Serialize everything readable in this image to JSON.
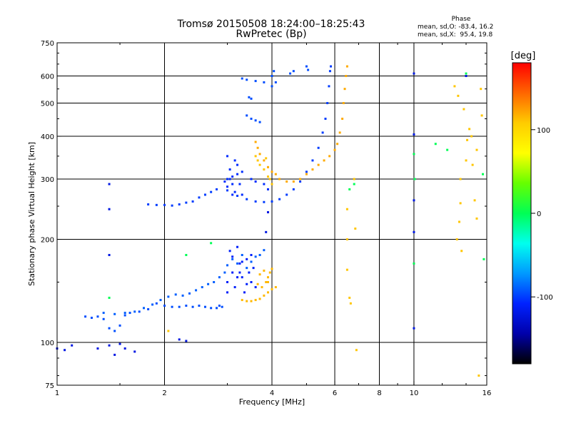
{
  "chart_data": {
    "type": "scatter",
    "title": "Tromsø 20150508 18:24:00–18:25:43",
    "subtitle": "RwPretec (Bp)",
    "xlabel": "Frequency [MHz]",
    "ylabel": "Stationary phase Virtual Height [km]",
    "x_scale": "log",
    "y_scale": "log",
    "xlim": [
      1,
      16
    ],
    "ylim": [
      75,
      750
    ],
    "x_ticks": [
      1,
      2,
      4,
      6,
      8,
      10,
      16
    ],
    "x_tick_labels": [
      "1",
      "2",
      "4",
      "6",
      "8",
      "10",
      "16"
    ],
    "y_ticks": [
      75,
      100,
      200,
      300,
      400,
      500,
      600,
      750
    ],
    "y_tick_labels": [
      "75",
      "100",
      "200",
      "300",
      "400",
      "500",
      "600",
      "750"
    ],
    "grid": true,
    "phase_stats": {
      "heading": "Phase",
      "o_line": "mean, sd,O: -83.4, 16.2",
      "x_line": "mean, sd,X:  95.4, 19.8"
    },
    "colorbar": {
      "label": "[deg]",
      "ticks": [
        100,
        0,
        -100
      ],
      "tick_labels": [
        "100",
        "0",
        "-100"
      ],
      "range": [
        -180,
        180
      ],
      "colors": [
        "#ff0000",
        "#ff6600",
        "#ffcc00",
        "#ffff00",
        "#66ff00",
        "#00ff55",
        "#00ffee",
        "#0099ff",
        "#0022ff",
        "#0000aa",
        "#000000"
      ]
    },
    "series": [
      {
        "kind": "o-low-e",
        "phase": -95,
        "points": [
          [
            1.2,
            119
          ],
          [
            1.25,
            118
          ],
          [
            1.3,
            119
          ],
          [
            1.35,
            117
          ],
          [
            1.4,
            110
          ],
          [
            1.45,
            108
          ],
          [
            1.5,
            112
          ],
          [
            1.55,
            120
          ],
          [
            1.6,
            122
          ],
          [
            1.7,
            123
          ],
          [
            1.8,
            125
          ],
          [
            1.9,
            130
          ],
          [
            2.0,
            128
          ],
          [
            2.1,
            127
          ],
          [
            2.2,
            127
          ],
          [
            2.3,
            128
          ],
          [
            2.4,
            127
          ],
          [
            2.5,
            128
          ],
          [
            2.6,
            127
          ],
          [
            2.7,
            126
          ],
          [
            2.8,
            126
          ],
          [
            2.85,
            128
          ],
          [
            2.9,
            127
          ]
        ]
      },
      {
        "kind": "o-low-e-2",
        "phase": -90,
        "points": [
          [
            1.35,
            122
          ],
          [
            1.45,
            121
          ],
          [
            1.55,
            122
          ],
          [
            1.65,
            123
          ],
          [
            1.75,
            126
          ],
          [
            1.85,
            129
          ],
          [
            1.95,
            133
          ],
          [
            2.05,
            136
          ],
          [
            2.15,
            138
          ],
          [
            2.25,
            137
          ],
          [
            2.35,
            139
          ],
          [
            2.45,
            142
          ],
          [
            2.55,
            145
          ],
          [
            2.65,
            148
          ],
          [
            2.75,
            150
          ],
          [
            2.85,
            155
          ],
          [
            2.95,
            160
          ],
          [
            3.0,
            168
          ],
          [
            3.1,
            175
          ],
          [
            3.2,
            170
          ],
          [
            3.3,
            180
          ],
          [
            3.4,
            165
          ],
          [
            3.5,
            172
          ],
          [
            3.6,
            178
          ],
          [
            3.7,
            180
          ],
          [
            3.8,
            186
          ]
        ]
      },
      {
        "kind": "o-cluster-e",
        "phase": -110,
        "points": [
          [
            3.0,
            150
          ],
          [
            3.05,
            185
          ],
          [
            3.1,
            160
          ],
          [
            3.15,
            145
          ],
          [
            3.2,
            190
          ],
          [
            3.25,
            170
          ],
          [
            3.3,
            155
          ],
          [
            3.35,
            140
          ],
          [
            3.4,
            175
          ],
          [
            3.45,
            160
          ],
          [
            3.5,
            150
          ],
          [
            3.55,
            165
          ],
          [
            3.6,
            145
          ],
          [
            3.2,
            155
          ],
          [
            3.3,
            172
          ],
          [
            3.4,
            148
          ],
          [
            3.1,
            178
          ],
          [
            3.0,
            140
          ],
          [
            3.5,
            180
          ],
          [
            3.25,
            160
          ]
        ]
      },
      {
        "kind": "x-low-e",
        "phase": 115,
        "points": [
          [
            3.3,
            133
          ],
          [
            3.4,
            132
          ],
          [
            3.5,
            132
          ],
          [
            3.6,
            133
          ],
          [
            3.7,
            134
          ],
          [
            3.8,
            137
          ],
          [
            3.9,
            140
          ],
          [
            4.0,
            143
          ],
          [
            3.75,
            145
          ],
          [
            3.85,
            150
          ],
          [
            3.9,
            155
          ],
          [
            3.95,
            160
          ],
          [
            4.0,
            164
          ],
          [
            3.8,
            162
          ],
          [
            3.7,
            158
          ],
          [
            3.65,
            148
          ],
          [
            3.9,
            150
          ],
          [
            4.1,
            145
          ]
        ]
      },
      {
        "kind": "o-f-trace",
        "phase": -100,
        "points": [
          [
            1.8,
            253
          ],
          [
            1.9,
            252
          ],
          [
            2.0,
            252
          ],
          [
            2.1,
            251
          ],
          [
            2.2,
            253
          ],
          [
            2.3,
            256
          ],
          [
            2.4,
            258
          ],
          [
            2.5,
            265
          ],
          [
            2.6,
            270
          ],
          [
            2.7,
            275
          ],
          [
            2.8,
            280
          ],
          [
            3.0,
            278
          ],
          [
            3.2,
            268
          ],
          [
            3.4,
            262
          ],
          [
            3.6,
            258
          ],
          [
            3.8,
            257
          ],
          [
            4.0,
            258
          ],
          [
            4.2,
            262
          ],
          [
            4.4,
            270
          ],
          [
            4.6,
            280
          ],
          [
            4.8,
            295
          ],
          [
            5.0,
            315
          ],
          [
            5.2,
            340
          ],
          [
            5.4,
            370
          ],
          [
            5.55,
            410
          ],
          [
            5.65,
            450
          ],
          [
            5.72,
            500
          ],
          [
            5.78,
            560
          ],
          [
            5.82,
            620
          ],
          [
            5.85,
            640
          ]
        ]
      },
      {
        "kind": "o-f-spread",
        "phase": -105,
        "points": [
          [
            3.0,
            300
          ],
          [
            3.05,
            320
          ],
          [
            3.1,
            290
          ],
          [
            3.15,
            340
          ],
          [
            3.2,
            310
          ],
          [
            3.0,
            285
          ],
          [
            3.1,
            270
          ],
          [
            3.05,
            300
          ],
          [
            3.2,
            330
          ],
          [
            3.25,
            290
          ],
          [
            3.3,
            315
          ],
          [
            2.95,
            295
          ],
          [
            3.0,
            350
          ],
          [
            3.1,
            305
          ],
          [
            3.15,
            275
          ],
          [
            3.3,
            270
          ],
          [
            3.5,
            300
          ],
          [
            3.6,
            295
          ],
          [
            3.8,
            290
          ],
          [
            3.9,
            280
          ]
        ]
      },
      {
        "kind": "o-high",
        "phase": -95,
        "points": [
          [
            3.3,
            590
          ],
          [
            3.4,
            585
          ],
          [
            3.6,
            580
          ],
          [
            3.8,
            575
          ],
          [
            4.0,
            560
          ],
          [
            4.0,
            600
          ],
          [
            4.05,
            620
          ],
          [
            4.1,
            575
          ],
          [
            4.5,
            610
          ],
          [
            4.6,
            620
          ],
          [
            5.0,
            640
          ],
          [
            5.05,
            625
          ],
          [
            3.4,
            460
          ],
          [
            3.5,
            450
          ],
          [
            3.6,
            445
          ],
          [
            3.7,
            440
          ],
          [
            3.45,
            520
          ],
          [
            3.5,
            515
          ]
        ]
      },
      {
        "kind": "x-f-trace",
        "phase": 120,
        "points": [
          [
            3.6,
            385
          ],
          [
            3.65,
            370
          ],
          [
            3.7,
            355
          ],
          [
            3.8,
            340
          ],
          [
            3.9,
            325
          ],
          [
            4.0,
            315
          ],
          [
            4.1,
            310
          ],
          [
            4.2,
            300
          ],
          [
            4.4,
            295
          ],
          [
            4.6,
            295
          ],
          [
            4.8,
            300
          ],
          [
            5.0,
            310
          ],
          [
            5.2,
            320
          ],
          [
            5.4,
            330
          ],
          [
            5.6,
            340
          ],
          [
            5.8,
            350
          ],
          [
            6.0,
            365
          ],
          [
            6.1,
            380
          ],
          [
            6.2,
            410
          ],
          [
            6.3,
            450
          ],
          [
            6.35,
            500
          ],
          [
            6.4,
            550
          ],
          [
            6.45,
            600
          ],
          [
            6.5,
            640
          ]
        ]
      },
      {
        "kind": "x-f-spread",
        "phase": 110,
        "points": [
          [
            3.6,
            350
          ],
          [
            3.65,
            340
          ],
          [
            3.7,
            330
          ],
          [
            3.8,
            320
          ],
          [
            3.85,
            345
          ],
          [
            3.9,
            305
          ],
          [
            3.95,
            300
          ],
          [
            4.0,
            290
          ]
        ]
      },
      {
        "kind": "noise",
        "phase": -120,
        "points": [
          [
            1.0,
            96
          ],
          [
            1.05,
            95
          ],
          [
            1.1,
            98
          ],
          [
            1.3,
            96
          ],
          [
            1.4,
            98
          ],
          [
            1.45,
            92
          ],
          [
            1.5,
            99
          ],
          [
            1.55,
            96
          ],
          [
            1.65,
            94
          ],
          [
            1.4,
            290
          ],
          [
            1.4,
            245
          ],
          [
            1.4,
            180
          ],
          [
            2.2,
            102
          ],
          [
            2.3,
            101
          ],
          [
            3.85,
            210
          ],
          [
            3.9,
            240
          ],
          [
            10.0,
            110
          ],
          [
            10.0,
            210
          ],
          [
            10.0,
            260
          ],
          [
            10.0,
            405
          ],
          [
            10.0,
            610
          ],
          [
            14.0,
            600
          ]
        ]
      },
      {
        "kind": "noise-warm",
        "phase": 110,
        "points": [
          [
            2.05,
            108
          ],
          [
            6.5,
            245
          ],
          [
            6.5,
            200
          ],
          [
            6.5,
            163
          ],
          [
            6.6,
            135
          ],
          [
            6.65,
            130
          ],
          [
            6.8,
            300
          ],
          [
            6.85,
            215
          ],
          [
            6.9,
            95
          ],
          [
            13.2,
            200
          ],
          [
            13.4,
            225
          ],
          [
            13.5,
            255
          ],
          [
            13.6,
            185
          ],
          [
            13.8,
            480
          ],
          [
            14.0,
            340
          ],
          [
            14.1,
            390
          ],
          [
            14.3,
            420
          ],
          [
            14.5,
            400
          ],
          [
            14.6,
            330
          ],
          [
            14.8,
            260
          ],
          [
            15.0,
            230
          ],
          [
            15.2,
            80
          ],
          [
            15.4,
            550
          ],
          [
            15.5,
            460
          ],
          [
            13.0,
            560
          ],
          [
            13.3,
            525
          ],
          [
            13.5,
            300
          ],
          [
            15.0,
            365
          ]
        ]
      },
      {
        "kind": "noise-mixed",
        "phase": 0,
        "points": [
          [
            6.6,
            280
          ],
          [
            10.0,
            170
          ],
          [
            10.05,
            300
          ],
          [
            11.5,
            380
          ],
          [
            12.4,
            365
          ],
          [
            14.0,
            610
          ],
          [
            15.6,
            310
          ],
          [
            15.7,
            175
          ],
          [
            10.0,
            355
          ],
          [
            6.8,
            290
          ],
          [
            2.7,
            195
          ],
          [
            2.3,
            180
          ],
          [
            1.4,
            135
          ]
        ]
      }
    ]
  }
}
